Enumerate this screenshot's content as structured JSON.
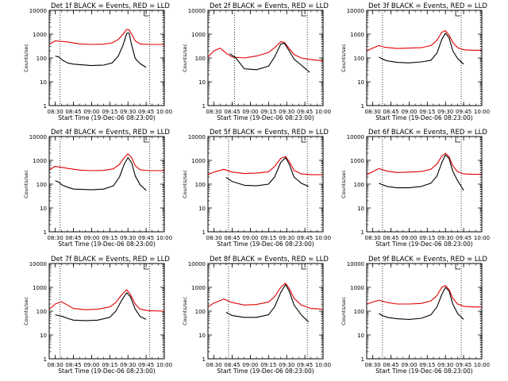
{
  "chart_data": [
    {
      "type": "line",
      "title": "Det 1f BLACK = Events, RED = LLD",
      "xlabel": "Start Time (19-Dec-06 08:23:00)",
      "ylabel": "Counts/sec",
      "xlim": [
        "08:25",
        "10:00"
      ],
      "ylim": [
        1,
        10000
      ],
      "yscale": "log",
      "xticks": [
        "08:30",
        "08:45",
        "09:00",
        "09:15",
        "09:30",
        "09:45",
        "10:00"
      ],
      "yticks": [
        "1",
        "10",
        "100",
        "1000",
        "10000"
      ],
      "vlines": [
        "08:34",
        "09:48",
        "09:59"
      ],
      "grid": false,
      "series": [
        {
          "color": "#e00000",
          "x": [
            "08:25",
            "08:30",
            "08:40",
            "08:50",
            "09:00",
            "09:10",
            "09:17",
            "09:22",
            "09:26",
            "09:29",
            "09:31",
            "09:33",
            "09:36",
            "09:40",
            "09:47",
            "10:00"
          ],
          "y": [
            380,
            520,
            470,
            390,
            370,
            380,
            430,
            600,
            1000,
            1600,
            1500,
            1000,
            520,
            390,
            370,
            370
          ]
        },
        {
          "color": "#000000",
          "x": [
            "08:30",
            "08:33",
            "08:36",
            "08:40",
            "08:45",
            "09:00",
            "09:10",
            "09:17",
            "09:22",
            "09:26",
            "09:29",
            "09:31",
            "09:33",
            "09:36",
            "09:40",
            "09:45"
          ],
          "y": [
            120,
            110,
            80,
            62,
            55,
            48,
            50,
            62,
            120,
            350,
            1100,
            1100,
            350,
            95,
            58,
            40
          ]
        }
      ]
    },
    {
      "type": "line",
      "title": "Det 2f BLACK = Events, RED = LLD",
      "xlabel": "Start Time (19-Dec-06 08:23:00)",
      "ylabel": "Counts/sec",
      "xlim": [
        "08:25",
        "10:00"
      ],
      "ylim": [
        1,
        10000
      ],
      "yscale": "log",
      "xticks": [
        "08:30",
        "08:45",
        "09:00",
        "09:15",
        "09:30",
        "09:45",
        "10:00"
      ],
      "yticks": [
        "1",
        "10",
        "100",
        "1000",
        "10000"
      ],
      "vlines": [
        "08:47",
        "09:47",
        "09:59"
      ],
      "grid": false,
      "series": [
        {
          "color": "#e00000",
          "x": [
            "08:25",
            "08:30",
            "08:35",
            "08:40",
            "08:45",
            "08:55",
            "09:05",
            "09:15",
            "09:20",
            "09:25",
            "09:28",
            "09:32",
            "09:36",
            "09:42",
            "09:50",
            "10:00"
          ],
          "y": [
            110,
            200,
            260,
            160,
            110,
            100,
            120,
            170,
            270,
            480,
            450,
            250,
            140,
            100,
            85,
            75
          ]
        },
        {
          "color": "#000000",
          "x": [
            "08:43",
            "08:48",
            "08:55",
            "09:05",
            "09:15",
            "09:20",
            "09:25",
            "09:28",
            "09:32",
            "09:36",
            "09:42",
            "09:49"
          ],
          "y": [
            150,
            100,
            35,
            32,
            45,
            110,
            380,
            420,
            200,
            90,
            50,
            25
          ]
        }
      ]
    },
    {
      "type": "line",
      "title": "Det 3f BLACK = Events, RED = LLD",
      "xlabel": "Start Time (19-Dec-06 08:23:00)",
      "ylabel": "Counts/sec",
      "xlim": [
        "08:25",
        "10:00"
      ],
      "ylim": [
        1,
        10000
      ],
      "yscale": "log",
      "xticks": [
        "08:30",
        "08:45",
        "09:00",
        "09:15",
        "09:30",
        "09:45",
        "10:00"
      ],
      "yticks": [
        "1",
        "10",
        "100",
        "1000",
        "10000"
      ],
      "vlines": [
        "08:38",
        "09:43",
        "09:59"
      ],
      "grid": false,
      "series": [
        {
          "color": "#e00000",
          "x": [
            "08:25",
            "08:30",
            "08:35",
            "08:40",
            "08:50",
            "09:00",
            "09:10",
            "09:18",
            "09:23",
            "09:27",
            "09:30",
            "09:33",
            "09:36",
            "09:40",
            "09:45",
            "09:52",
            "10:00"
          ],
          "y": [
            200,
            260,
            330,
            280,
            250,
            260,
            270,
            330,
            550,
            1200,
            1400,
            900,
            450,
            270,
            220,
            210,
            210
          ]
        },
        {
          "color": "#000000",
          "x": [
            "08:35",
            "08:38",
            "08:42",
            "08:50",
            "09:00",
            "09:10",
            "09:18",
            "09:23",
            "09:27",
            "09:30",
            "09:33",
            "09:36",
            "09:40",
            "09:45"
          ],
          "y": [
            110,
            90,
            75,
            65,
            62,
            68,
            80,
            160,
            600,
            1100,
            700,
            200,
            95,
            55
          ]
        }
      ]
    },
    {
      "type": "line",
      "title": "Det 4f BLACK = Events, RED = LLD",
      "xlabel": "Start Time (19-Dec-06 08:23:00)",
      "ylabel": "Counts/sec",
      "xlim": [
        "08:25",
        "10:00"
      ],
      "ylim": [
        1,
        10000
      ],
      "yscale": "log",
      "xticks": [
        "08:30",
        "08:45",
        "09:00",
        "09:15",
        "09:30",
        "09:45",
        "10:00"
      ],
      "yticks": [
        "1",
        "10",
        "100",
        "1000",
        "10000"
      ],
      "vlines": [
        "08:34",
        "09:48",
        "09:59"
      ],
      "grid": false,
      "series": [
        {
          "color": "#e00000",
          "x": [
            "08:25",
            "08:30",
            "08:40",
            "08:50",
            "09:00",
            "09:10",
            "09:18",
            "09:23",
            "09:27",
            "09:30",
            "09:33",
            "09:36",
            "09:40",
            "09:47",
            "10:00"
          ],
          "y": [
            400,
            560,
            460,
            390,
            370,
            380,
            440,
            680,
            1300,
            1900,
            1300,
            600,
            400,
            370,
            370
          ]
        },
        {
          "color": "#000000",
          "x": [
            "08:30",
            "08:33",
            "08:36",
            "08:40",
            "08:45",
            "09:00",
            "09:10",
            "09:18",
            "09:23",
            "09:27",
            "09:30",
            "09:33",
            "09:36",
            "09:40",
            "09:45"
          ],
          "y": [
            140,
            120,
            90,
            75,
            62,
            58,
            62,
            85,
            200,
            700,
            1300,
            800,
            220,
            95,
            55
          ]
        }
      ]
    },
    {
      "type": "line",
      "title": "Det 5f BLACK = Events, RED = LLD",
      "xlabel": "Start Time (19-Dec-06 08:23:00)",
      "ylabel": "Counts/sec",
      "xlim": [
        "08:25",
        "10:00"
      ],
      "ylim": [
        1,
        10000
      ],
      "yscale": "log",
      "xticks": [
        "08:30",
        "08:45",
        "09:00",
        "09:15",
        "09:30",
        "09:45",
        "10:00"
      ],
      "yticks": [
        "1",
        "10",
        "100",
        "1000",
        "10000"
      ],
      "vlines": [
        "08:42",
        "09:47",
        "09:59"
      ],
      "grid": false,
      "series": [
        {
          "color": "#e00000",
          "x": [
            "08:25",
            "08:30",
            "08:38",
            "08:45",
            "08:55",
            "09:05",
            "09:15",
            "09:20",
            "09:25",
            "09:29",
            "09:32",
            "09:36",
            "09:42",
            "09:50",
            "10:00"
          ],
          "y": [
            250,
            320,
            420,
            320,
            280,
            290,
            330,
            550,
            1200,
            1450,
            900,
            380,
            270,
            250,
            250
          ]
        },
        {
          "color": "#000000",
          "x": [
            "08:40",
            "08:45",
            "08:55",
            "09:05",
            "09:15",
            "09:20",
            "09:25",
            "09:29",
            "09:32",
            "09:36",
            "09:42",
            "09:48"
          ],
          "y": [
            190,
            130,
            90,
            85,
            100,
            200,
            800,
            1300,
            700,
            200,
            110,
            80
          ]
        }
      ]
    },
    {
      "type": "line",
      "title": "Det 6f BLACK = Events, RED = LLD",
      "xlabel": "Start Time (19-Dec-06 08:23:00)",
      "ylabel": "Counts/sec",
      "xlim": [
        "08:25",
        "10:00"
      ],
      "ylim": [
        1,
        10000
      ],
      "yscale": "log",
      "xticks": [
        "08:30",
        "08:45",
        "09:00",
        "09:15",
        "09:30",
        "09:45",
        "10:00"
      ],
      "yticks": [
        "1",
        "10",
        "100",
        "1000",
        "10000"
      ],
      "vlines": [
        "08:38",
        "09:43",
        "09:59"
      ],
      "grid": false,
      "series": [
        {
          "color": "#e00000",
          "x": [
            "08:25",
            "08:30",
            "08:35",
            "08:42",
            "08:50",
            "09:00",
            "09:10",
            "09:18",
            "09:23",
            "09:27",
            "09:30",
            "09:33",
            "09:36",
            "09:40",
            "09:45",
            "09:52",
            "10:00"
          ],
          "y": [
            250,
            330,
            450,
            350,
            310,
            320,
            340,
            420,
            700,
            1500,
            2000,
            1400,
            600,
            330,
            270,
            260,
            260
          ]
        },
        {
          "color": "#000000",
          "x": [
            "08:35",
            "08:38",
            "08:42",
            "08:50",
            "09:00",
            "09:10",
            "09:18",
            "09:23",
            "09:27",
            "09:30",
            "09:33",
            "09:36",
            "09:40",
            "09:45"
          ],
          "y": [
            110,
            95,
            80,
            70,
            70,
            80,
            110,
            220,
            800,
            1700,
            1200,
            350,
            140,
            55
          ]
        }
      ]
    },
    {
      "type": "line",
      "title": "Det 7f BLACK = Events, RED = LLD",
      "xlabel": "Start Time (19-Dec-06 08:23:00)",
      "ylabel": "Counts/sec",
      "xlim": [
        "08:25",
        "10:00"
      ],
      "ylim": [
        1,
        10000
      ],
      "yscale": "log",
      "xticks": [
        "08:30",
        "08:45",
        "09:00",
        "09:15",
        "09:30",
        "09:45",
        "10:00"
      ],
      "yticks": [
        "1",
        "10",
        "100",
        "1000",
        "10000"
      ],
      "vlines": [
        "08:34",
        "09:48",
        "09:59"
      ],
      "grid": false,
      "series": [
        {
          "color": "#e00000",
          "x": [
            "08:25",
            "08:30",
            "08:35",
            "08:40",
            "08:45",
            "08:55",
            "09:05",
            "09:15",
            "09:20",
            "09:25",
            "09:29",
            "09:32",
            "09:36",
            "09:40",
            "09:47",
            "10:00"
          ],
          "y": [
            120,
            200,
            250,
            180,
            130,
            115,
            120,
            150,
            230,
            500,
            800,
            500,
            200,
            120,
            105,
            100
          ]
        },
        {
          "color": "#000000",
          "x": [
            "08:30",
            "08:33",
            "08:36",
            "08:40",
            "08:45",
            "08:55",
            "09:05",
            "09:15",
            "09:20",
            "09:25",
            "09:29",
            "09:32",
            "09:36",
            "09:40",
            "09:45"
          ],
          "y": [
            70,
            65,
            60,
            50,
            42,
            40,
            42,
            55,
            100,
            300,
            600,
            400,
            120,
            60,
            45
          ]
        }
      ]
    },
    {
      "type": "line",
      "title": "Det 8f BLACK = Events, RED = LLD",
      "xlabel": "Start Time (19-Dec-06 08:23:00)",
      "ylabel": "Counts/sec",
      "xlim": [
        "08:25",
        "10:00"
      ],
      "ylim": [
        1,
        10000
      ],
      "yscale": "log",
      "xticks": [
        "08:30",
        "08:45",
        "09:00",
        "09:15",
        "09:30",
        "09:45",
        "10:00"
      ],
      "yticks": [
        "1",
        "10",
        "100",
        "1000",
        "10000"
      ],
      "vlines": [
        "08:42",
        "09:47",
        "09:59"
      ],
      "grid": false,
      "series": [
        {
          "color": "#e00000",
          "x": [
            "08:25",
            "08:30",
            "08:38",
            "08:45",
            "08:55",
            "09:05",
            "09:15",
            "09:20",
            "09:25",
            "09:29",
            "09:32",
            "09:36",
            "09:42",
            "09:50",
            "10:00"
          ],
          "y": [
            150,
            220,
            320,
            230,
            180,
            190,
            240,
            400,
            1000,
            1500,
            900,
            350,
            180,
            130,
            120
          ]
        },
        {
          "color": "#000000",
          "x": [
            "08:40",
            "08:45",
            "08:55",
            "09:05",
            "09:15",
            "09:20",
            "09:25",
            "09:29",
            "09:32",
            "09:36",
            "09:42",
            "09:48"
          ],
          "y": [
            90,
            65,
            55,
            55,
            70,
            150,
            600,
            1300,
            700,
            180,
            70,
            35
          ]
        }
      ]
    },
    {
      "type": "line",
      "title": "Det 9f BLACK = Events, RED = LLD",
      "xlabel": "Start Time (19-Dec-06 08:23:00)",
      "ylabel": "Counts/sec",
      "xlim": [
        "08:25",
        "10:00"
      ],
      "ylim": [
        1,
        10000
      ],
      "yscale": "log",
      "xticks": [
        "08:30",
        "08:45",
        "09:00",
        "09:15",
        "09:30",
        "09:45",
        "10:00"
      ],
      "yticks": [
        "1",
        "10",
        "100",
        "1000",
        "10000"
      ],
      "vlines": [
        "08:38",
        "09:43",
        "09:59"
      ],
      "grid": false,
      "series": [
        {
          "color": "#e00000",
          "x": [
            "08:25",
            "08:30",
            "08:35",
            "08:42",
            "08:50",
            "09:00",
            "09:10",
            "09:18",
            "09:23",
            "09:27",
            "09:30",
            "09:33",
            "09:36",
            "09:40",
            "09:45",
            "09:52",
            "10:00"
          ],
          "y": [
            200,
            240,
            290,
            230,
            200,
            200,
            210,
            270,
            450,
            1000,
            1200,
            800,
            350,
            200,
            160,
            150,
            150
          ]
        },
        {
          "color": "#000000",
          "x": [
            "08:35",
            "08:38",
            "08:42",
            "08:50",
            "09:00",
            "09:10",
            "09:18",
            "09:23",
            "09:27",
            "09:30",
            "09:33",
            "09:36",
            "09:40",
            "09:45"
          ],
          "y": [
            80,
            65,
            55,
            48,
            45,
            50,
            70,
            150,
            500,
            1000,
            700,
            200,
            80,
            45
          ]
        }
      ]
    }
  ]
}
